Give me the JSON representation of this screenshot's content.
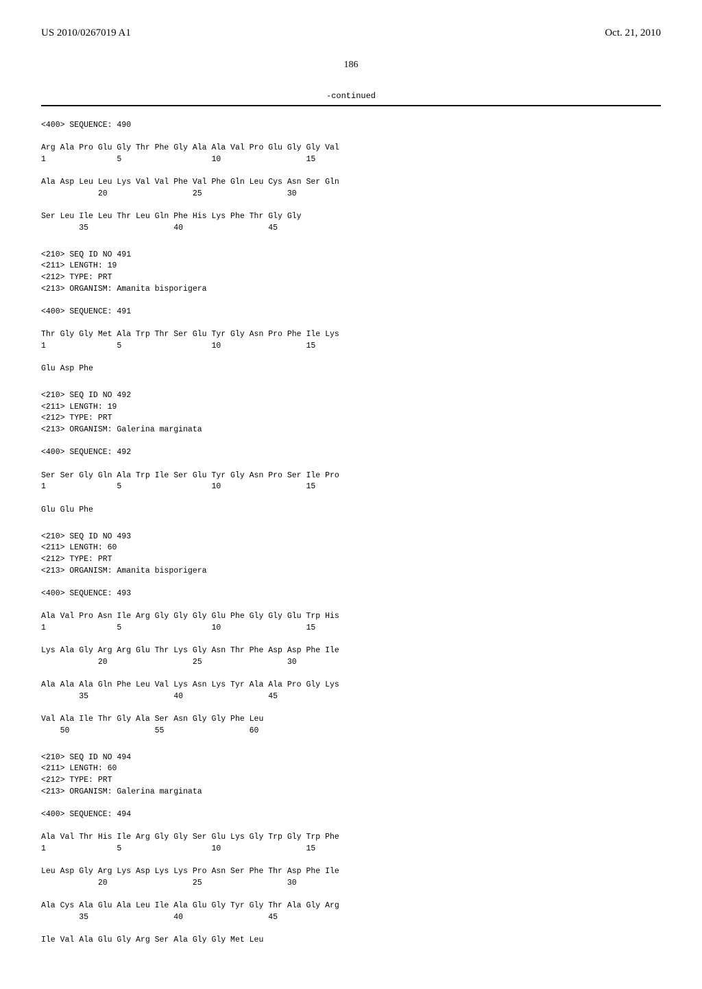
{
  "header": {
    "pub_number": "US 2010/0267019 A1",
    "pub_date": "Oct. 21, 2010"
  },
  "page_number": "186",
  "continued_label": "-continued",
  "sequences": [
    {
      "header_line": "<400> SEQUENCE: 490",
      "body": "Arg Ala Pro Glu Gly Thr Phe Gly Ala Ala Val Pro Glu Gly Gly Val\n1               5                   10                  15\n\nAla Asp Leu Leu Lys Val Val Phe Val Phe Gln Leu Cys Asn Ser Gln\n            20                  25                  30\n\nSer Leu Ile Leu Thr Leu Gln Phe His Lys Phe Thr Gly Gly\n        35                  40                  45"
    },
    {
      "header_line": "<210> SEQ ID NO 491\n<211> LENGTH: 19\n<212> TYPE: PRT\n<213> ORGANISM: Amanita bisporigera\n\n<400> SEQUENCE: 491",
      "body": "Thr Gly Gly Met Ala Trp Thr Ser Glu Tyr Gly Asn Pro Phe Ile Lys\n1               5                   10                  15\n\nGlu Asp Phe"
    },
    {
      "header_line": "<210> SEQ ID NO 492\n<211> LENGTH: 19\n<212> TYPE: PRT\n<213> ORGANISM: Galerina marginata\n\n<400> SEQUENCE: 492",
      "body": "Ser Ser Gly Gln Ala Trp Ile Ser Glu Tyr Gly Asn Pro Ser Ile Pro\n1               5                   10                  15\n\nGlu Glu Phe"
    },
    {
      "header_line": "<210> SEQ ID NO 493\n<211> LENGTH: 60\n<212> TYPE: PRT\n<213> ORGANISM: Amanita bisporigera\n\n<400> SEQUENCE: 493",
      "body": "Ala Val Pro Asn Ile Arg Gly Gly Gly Glu Phe Gly Gly Glu Trp His\n1               5                   10                  15\n\nLys Ala Gly Arg Arg Glu Thr Lys Gly Asn Thr Phe Asp Asp Phe Ile\n            20                  25                  30\n\nAla Ala Ala Gln Phe Leu Val Lys Asn Lys Tyr Ala Ala Pro Gly Lys\n        35                  40                  45\n\nVal Ala Ile Thr Gly Ala Ser Asn Gly Gly Phe Leu\n    50                  55                  60"
    },
    {
      "header_line": "<210> SEQ ID NO 494\n<211> LENGTH: 60\n<212> TYPE: PRT\n<213> ORGANISM: Galerina marginata\n\n<400> SEQUENCE: 494",
      "body": "Ala Val Thr His Ile Arg Gly Gly Ser Glu Lys Gly Trp Gly Trp Phe\n1               5                   10                  15\n\nLeu Asp Gly Arg Lys Asp Lys Lys Pro Asn Ser Phe Thr Asp Phe Ile\n            20                  25                  30\n\nAla Cys Ala Glu Ala Leu Ile Ala Glu Gly Tyr Gly Thr Ala Gly Arg\n        35                  40                  45\n\nIle Val Ala Glu Gly Arg Ser Ala Gly Gly Met Leu"
    }
  ]
}
